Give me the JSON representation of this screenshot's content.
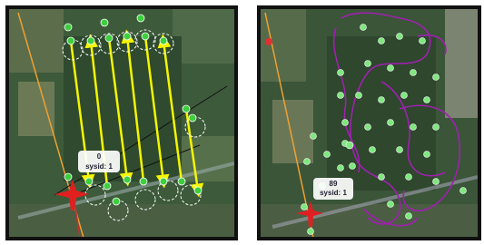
{
  "panels": [
    {
      "label": {
        "id": "0",
        "sysid": "sysid: 1"
      }
    },
    {
      "label": {
        "id": "89",
        "sysid": "sysid: 1"
      }
    }
  ]
}
